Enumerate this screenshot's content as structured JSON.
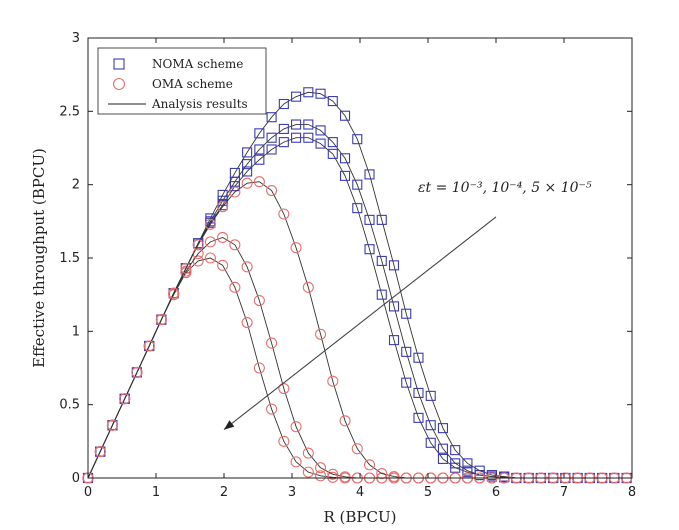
{
  "chart_data": {
    "type": "line",
    "xlabel": "R (BPCU)",
    "ylabel": "Effective throughput (BPCU)",
    "xlim": [
      0,
      8
    ],
    "ylim": [
      0,
      3
    ],
    "xticks": [
      "0",
      "1",
      "2",
      "3",
      "4",
      "5",
      "6",
      "7",
      "8"
    ],
    "yticks": [
      "0",
      "0.5",
      "1",
      "1.5",
      "2",
      "2.5",
      "3"
    ],
    "grid": false,
    "legend": {
      "placement": "top-left",
      "entries": [
        {
          "label": "NOMA scheme",
          "marker": "square",
          "color": "#3b3bb5"
        },
        {
          "label": "OMA scheme",
          "marker": "circle",
          "color": "#e8706f"
        },
        {
          "label": "Analysis results",
          "marker": "line",
          "color": "#222222"
        }
      ]
    },
    "annotation": {
      "text": "εt = 10⁻³, 10⁻⁴, 5 × 10⁻⁵",
      "arrow_from": [
        6.0,
        1.78
      ],
      "arrow_to": [
        2.0,
        0.33
      ]
    },
    "series": [
      {
        "scheme": "NOMA",
        "marker": "square",
        "color": "#3b3bb5",
        "x": [
          0,
          0.18,
          0.36,
          0.54,
          0.72,
          0.9,
          1.08,
          1.26,
          1.44,
          1.62,
          1.8,
          1.98,
          2.16,
          2.34,
          2.52,
          2.7,
          2.88,
          3.06,
          3.24,
          3.42,
          3.6,
          3.78,
          3.96,
          4.14,
          4.32,
          4.5,
          4.68,
          4.86,
          5.04,
          5.22,
          5.4,
          5.58,
          5.76,
          5.94,
          6.12,
          6.3,
          6.48,
          6.66,
          6.84,
          7.02,
          7.2,
          7.38,
          7.56,
          7.74,
          7.92
        ],
        "y": [
          0,
          0.18,
          0.36,
          0.54,
          0.72,
          0.9,
          1.08,
          1.26,
          1.43,
          1.6,
          1.74,
          1.86,
          1.99,
          2.09,
          2.17,
          2.24,
          2.29,
          2.32,
          2.32,
          2.28,
          2.21,
          2.06,
          1.84,
          1.56,
          1.25,
          0.94,
          0.65,
          0.41,
          0.24,
          0.13,
          0.07,
          0.04,
          0.02,
          0.01,
          0.005,
          0,
          0,
          0,
          0,
          0,
          0,
          0,
          0,
          0,
          0
        ]
      },
      {
        "scheme": "NOMA",
        "marker": "square",
        "color": "#3b3bb5",
        "x": [
          0,
          0.18,
          0.36,
          0.54,
          0.72,
          0.9,
          1.08,
          1.26,
          1.44,
          1.62,
          1.8,
          1.98,
          2.16,
          2.34,
          2.52,
          2.7,
          2.88,
          3.06,
          3.24,
          3.42,
          3.6,
          3.78,
          3.96,
          4.14,
          4.32,
          4.5,
          4.68,
          4.86,
          5.04,
          5.22,
          5.4,
          5.58,
          5.76,
          5.94,
          6.12,
          6.3,
          6.48,
          6.66,
          6.84,
          7.02,
          7.2,
          7.38,
          7.56,
          7.74,
          7.92
        ],
        "y": [
          0,
          0.18,
          0.36,
          0.54,
          0.72,
          0.9,
          1.08,
          1.26,
          1.43,
          1.6,
          1.75,
          1.89,
          2.02,
          2.14,
          2.24,
          2.32,
          2.38,
          2.41,
          2.41,
          2.37,
          2.29,
          2.18,
          2.0,
          1.76,
          1.48,
          1.17,
          0.86,
          0.58,
          0.36,
          0.2,
          0.1,
          0.05,
          0.02,
          0.01,
          0.005,
          0,
          0,
          0,
          0,
          0,
          0,
          0,
          0,
          0,
          0
        ]
      },
      {
        "scheme": "NOMA",
        "marker": "square",
        "color": "#3b3bb5",
        "x": [
          0,
          0.18,
          0.36,
          0.54,
          0.72,
          0.9,
          1.08,
          1.26,
          1.44,
          1.62,
          1.8,
          1.98,
          2.16,
          2.34,
          2.52,
          2.7,
          2.88,
          3.06,
          3.24,
          3.42,
          3.6,
          3.78,
          3.96,
          4.14,
          4.32,
          4.5,
          4.68,
          4.86,
          5.04,
          5.22,
          5.4,
          5.58,
          5.76,
          5.94,
          6.12,
          6.3,
          6.48,
          6.66,
          6.84,
          7.02,
          7.2,
          7.38,
          7.56,
          7.74,
          7.92
        ],
        "y": [
          0,
          0.18,
          0.36,
          0.54,
          0.72,
          0.9,
          1.08,
          1.26,
          1.43,
          1.6,
          1.77,
          1.93,
          2.08,
          2.22,
          2.35,
          2.46,
          2.55,
          2.6,
          2.63,
          2.62,
          2.57,
          2.47,
          2.31,
          2.07,
          1.76,
          1.45,
          1.12,
          0.82,
          0.56,
          0.34,
          0.19,
          0.1,
          0.05,
          0.02,
          0.01,
          0,
          0,
          0,
          0,
          0,
          0,
          0,
          0,
          0,
          0
        ]
      },
      {
        "scheme": "OMA",
        "marker": "circle",
        "color": "#e8706f",
        "x": [
          0,
          0.18,
          0.36,
          0.54,
          0.72,
          0.9,
          1.08,
          1.26,
          1.44,
          1.62,
          1.8,
          1.98,
          2.16,
          2.34,
          2.52,
          2.7,
          2.88,
          3.06,
          3.24,
          3.42,
          3.6,
          3.78,
          3.96,
          4.14,
          4.32,
          4.5,
          4.68,
          4.86,
          5.04,
          5.22,
          5.4,
          5.58,
          5.76,
          5.94,
          6.12,
          6.3,
          6.48,
          6.66,
          6.84,
          7.02,
          7.2,
          7.38,
          7.56,
          7.74,
          7.92
        ],
        "y": [
          0,
          0.18,
          0.36,
          0.54,
          0.72,
          0.9,
          1.08,
          1.25,
          1.4,
          1.48,
          1.5,
          1.45,
          1.3,
          1.06,
          0.75,
          0.47,
          0.25,
          0.11,
          0.04,
          0.015,
          0.005,
          0,
          0,
          0,
          0,
          0,
          0,
          0,
          0,
          0,
          0,
          0,
          0,
          0,
          0,
          0,
          0,
          0,
          0,
          0,
          0,
          0,
          0,
          0,
          0
        ]
      },
      {
        "scheme": "OMA",
        "marker": "circle",
        "color": "#e8706f",
        "x": [
          0,
          0.18,
          0.36,
          0.54,
          0.72,
          0.9,
          1.08,
          1.26,
          1.44,
          1.62,
          1.8,
          1.98,
          2.16,
          2.34,
          2.52,
          2.7,
          2.88,
          3.06,
          3.24,
          3.42,
          3.6,
          3.78,
          3.96,
          4.14,
          4.32,
          4.5,
          4.68,
          4.86,
          5.04,
          5.22,
          5.4,
          5.58,
          5.76,
          5.94,
          6.12,
          6.3,
          6.48,
          6.66,
          6.84,
          7.02,
          7.2,
          7.38,
          7.56,
          7.74,
          7.92
        ],
        "y": [
          0,
          0.18,
          0.36,
          0.54,
          0.72,
          0.9,
          1.08,
          1.26,
          1.41,
          1.53,
          1.61,
          1.64,
          1.59,
          1.44,
          1.21,
          0.92,
          0.61,
          0.35,
          0.17,
          0.07,
          0.025,
          0.008,
          0,
          0,
          0,
          0,
          0,
          0,
          0,
          0,
          0,
          0,
          0,
          0,
          0,
          0,
          0,
          0,
          0,
          0,
          0,
          0,
          0,
          0,
          0
        ]
      },
      {
        "scheme": "OMA",
        "marker": "circle",
        "color": "#e8706f",
        "x": [
          0,
          0.18,
          0.36,
          0.54,
          0.72,
          0.9,
          1.08,
          1.26,
          1.44,
          1.62,
          1.8,
          1.98,
          2.16,
          2.34,
          2.52,
          2.7,
          2.88,
          3.06,
          3.24,
          3.42,
          3.6,
          3.78,
          3.96,
          4.14,
          4.32,
          4.5,
          4.68,
          4.86,
          5.04,
          5.22,
          5.4,
          5.58,
          5.76,
          5.94,
          6.12,
          6.3,
          6.48,
          6.66,
          6.84,
          7.02,
          7.2,
          7.38,
          7.56,
          7.74,
          7.92
        ],
        "y": [
          0,
          0.18,
          0.36,
          0.54,
          0.72,
          0.9,
          1.08,
          1.26,
          1.43,
          1.59,
          1.73,
          1.85,
          1.95,
          2.01,
          2.02,
          1.96,
          1.8,
          1.57,
          1.3,
          0.98,
          0.66,
          0.39,
          0.2,
          0.09,
          0.03,
          0.01,
          0,
          0,
          0,
          0,
          0,
          0,
          0,
          0,
          0,
          0,
          0,
          0,
          0,
          0,
          0,
          0,
          0,
          0,
          0
        ]
      }
    ]
  }
}
